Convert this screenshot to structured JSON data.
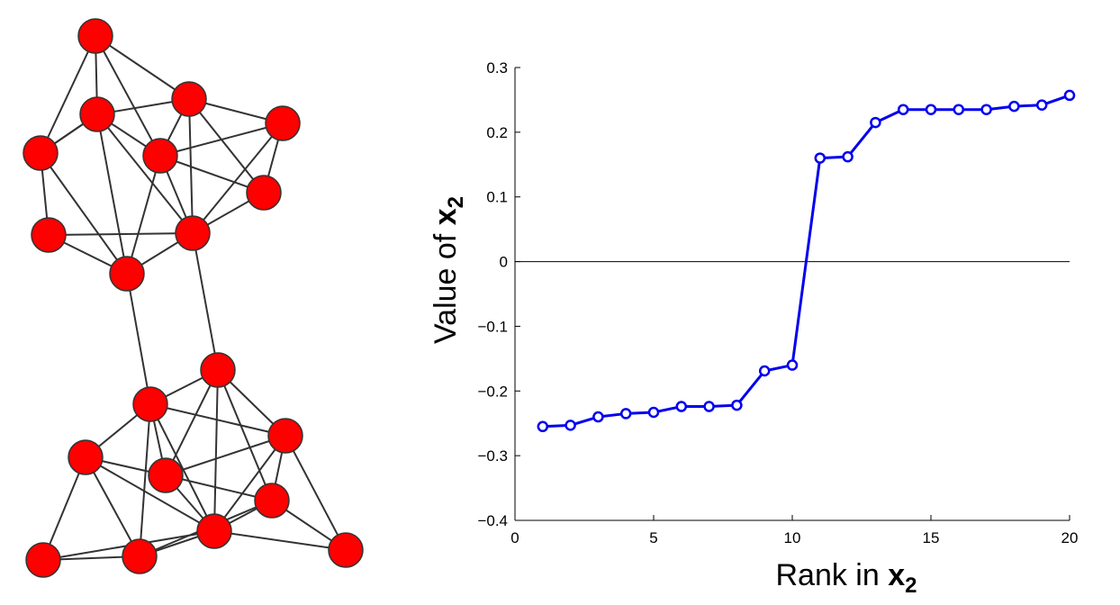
{
  "chart_data": {
    "type": "line",
    "xlabel_prefix": "Rank in ",
    "xlabel_var": "x",
    "xlabel_sub": "2",
    "ylabel_prefix": "Value of ",
    "ylabel_var": "x",
    "ylabel_sub": "2",
    "xlim": [
      0,
      20
    ],
    "ylim": [
      -0.4,
      0.3
    ],
    "xticks": [
      0,
      5,
      10,
      15,
      20
    ],
    "xtick_labels": [
      "0",
      "5",
      "10",
      "15",
      "20"
    ],
    "yticks": [
      -0.4,
      -0.3,
      -0.2,
      -0.1,
      0,
      0.1,
      0.2,
      0.3
    ],
    "ytick_labels": [
      "−0.4",
      "−0.3",
      "−0.2",
      "−0.1",
      "0",
      "0.1",
      "0.2",
      "0.3"
    ],
    "grid": false,
    "zero_line": true,
    "series": [
      {
        "color": "#0000ee",
        "marker": "circle",
        "x": [
          1,
          2,
          3,
          4,
          5,
          6,
          7,
          8,
          9,
          10,
          11,
          12,
          13,
          14,
          15,
          16,
          17,
          18,
          19,
          20
        ],
        "y": [
          -0.255,
          -0.253,
          -0.24,
          -0.235,
          -0.233,
          -0.224,
          -0.224,
          -0.222,
          -0.169,
          -0.16,
          0.16,
          0.162,
          0.215,
          0.235,
          0.235,
          0.235,
          0.235,
          0.24,
          0.242,
          0.257
        ]
      }
    ]
  },
  "graph": {
    "node_color": "#ff0000",
    "node_stroke": "#333333",
    "edge_color": "#333333"
  }
}
